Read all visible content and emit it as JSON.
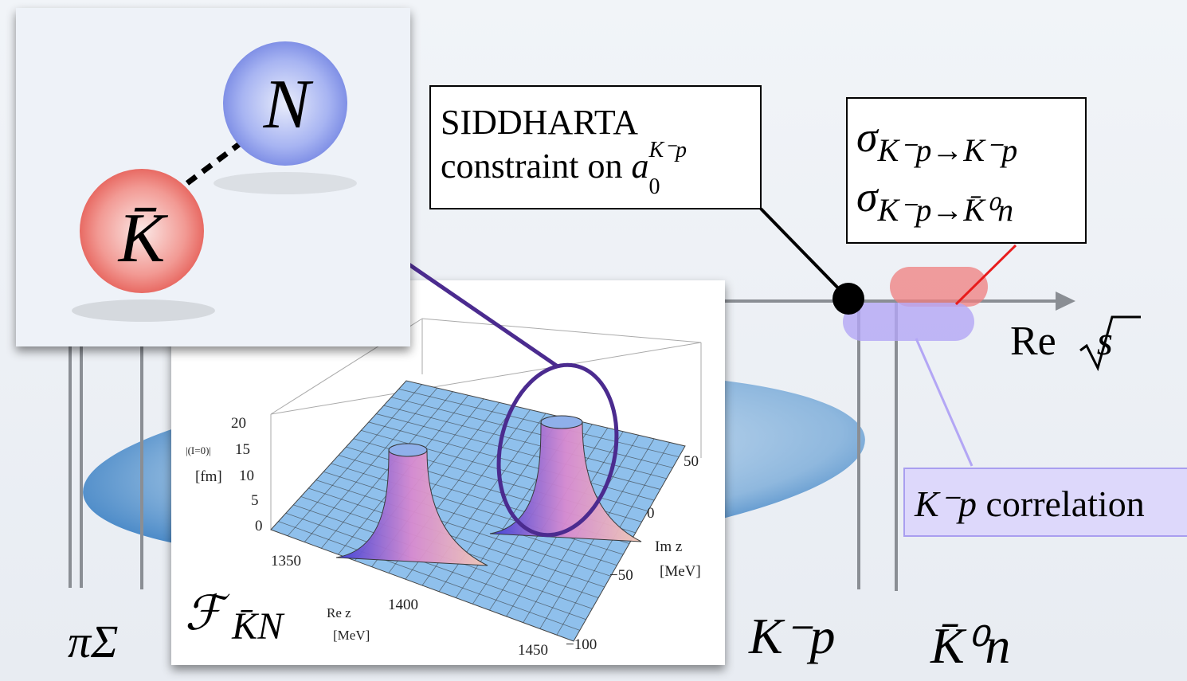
{
  "particles": {
    "nucleon": "N",
    "antikaon": "K̄"
  },
  "siddharta": {
    "line1": "SIDDHARTA",
    "line2": "constraint on ",
    "symbol": "a",
    "sub": "0",
    "sup": "K⁻p"
  },
  "cross_sections": [
    {
      "symbol": "σ",
      "sub": "K⁻p→K⁻p"
    },
    {
      "symbol": "σ",
      "sub": "K⁻p→K̄⁰n"
    }
  ],
  "axis_label": {
    "text": "Re ",
    "root": "s"
  },
  "correlation": {
    "symbol": "K⁻p",
    "text": " correlation"
  },
  "thresholds": [
    "πΣ",
    "K⁻p",
    "K̄⁰n"
  ],
  "inset": {
    "z_ticks": [
      "20",
      "15",
      "10",
      "5",
      "0"
    ],
    "z_label": [
      "|(I=0)|",
      "[fm]"
    ],
    "x_ticks": [
      "1350",
      "1400",
      "1450"
    ],
    "x_label": [
      "Re z",
      "[MeV]"
    ],
    "y_ticks": [
      "50",
      "0",
      "−50",
      "−100"
    ],
    "y_label": [
      "Im z",
      "[MeV]"
    ],
    "function": "ℱ",
    "function_sub": "K̄N"
  }
}
